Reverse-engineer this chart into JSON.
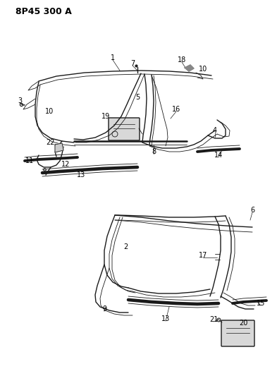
{
  "title": "8P45 300 A",
  "bg_color": "#ffffff",
  "line_color": "#1a1a1a",
  "text_color": "#000000",
  "title_fontsize": 9,
  "label_fontsize": 7,
  "figsize": [
    3.93,
    5.33
  ],
  "dpi": 100
}
